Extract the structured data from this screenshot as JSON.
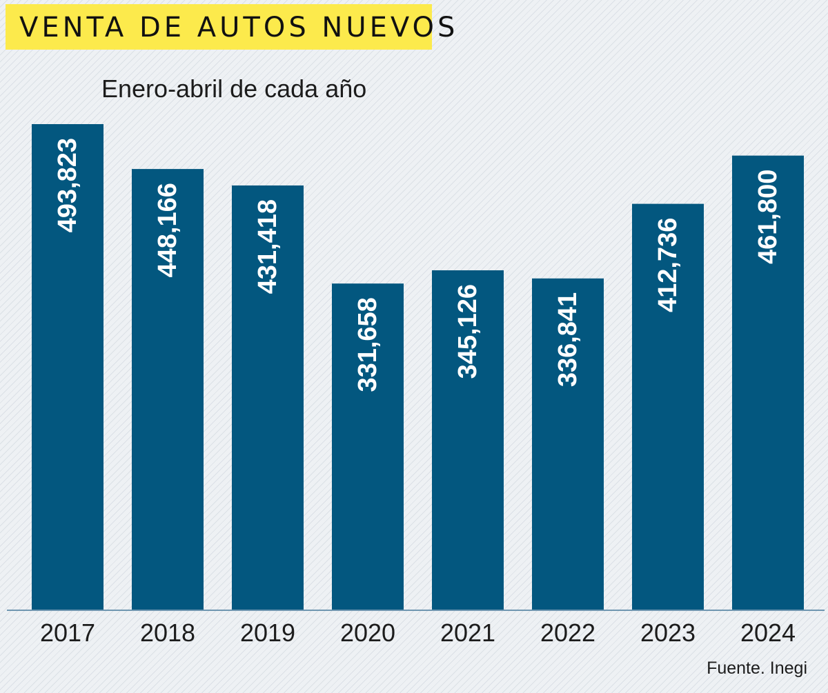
{
  "header": {
    "title": "VENTA DE AUTOS NUEVOS",
    "subtitle": "Enero-abril de cada año"
  },
  "footer": {
    "source": "Fuente. Inegi"
  },
  "colors": {
    "bar": "#03577f",
    "title_background": "#fcea4c",
    "axis": "#6f96b0",
    "bar_label": "#ffffff"
  },
  "chart_data": {
    "type": "bar",
    "title": "VENTA DE AUTOS NUEVOS",
    "subtitle": "Enero-abril de cada año",
    "categories": [
      "2017",
      "2018",
      "2019",
      "2020",
      "2021",
      "2022",
      "2023",
      "2024"
    ],
    "values": [
      493823,
      448166,
      431418,
      331658,
      345126,
      336841,
      412736,
      461800
    ],
    "value_labels": [
      "493,823",
      "448,166",
      "431,418",
      "331,658",
      "345,126",
      "336,841",
      "412,736",
      "461,800"
    ],
    "ylim": [
      0,
      493823
    ],
    "grid": false,
    "legend": "none",
    "label_orientation": "vertical"
  }
}
